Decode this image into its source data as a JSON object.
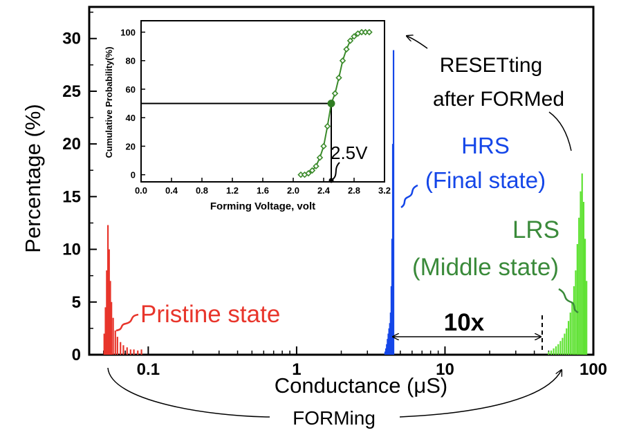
{
  "chart_data": [
    {
      "type": "bar",
      "xlabel": "Conductance (μS)",
      "ylabel": "Percentage (%)",
      "x_scale": "log",
      "xlim": [
        0.04,
        100
      ],
      "ylim": [
        0,
        33
      ],
      "y_ticks": [
        0,
        5,
        10,
        15,
        20,
        25,
        30
      ],
      "x_ticks": [
        {
          "value": 0.1,
          "label": "0.1"
        },
        {
          "value": 1,
          "label": "1"
        },
        {
          "value": 10,
          "label": "10"
        },
        {
          "value": 100,
          "label": "100"
        }
      ],
      "series": [
        {
          "name": "Pristine state",
          "color": "#e8352b",
          "x": [
            0.0505,
            0.0515,
            0.0525,
            0.0535,
            0.0545,
            0.0555,
            0.0565,
            0.058,
            0.06,
            0.062,
            0.065,
            0.068,
            0.072,
            0.076,
            0.08,
            0.085,
            0.09
          ],
          "values": [
            2.0,
            4.5,
            8.0,
            12.3,
            10.0,
            7.0,
            5.0,
            3.5,
            2.3,
            1.7,
            1.2,
            0.9,
            0.7,
            0.5,
            0.5,
            0.4,
            0.5
          ]
        },
        {
          "name": "HRS (Final state)",
          "color": "#1446e8",
          "x": [
            3.95,
            4.0,
            4.05,
            4.1,
            4.15,
            4.2,
            4.25,
            4.3,
            4.35,
            4.4,
            4.45,
            4.5
          ],
          "values": [
            0.3,
            0.6,
            1.0,
            1.5,
            2.0,
            2.5,
            3.0,
            4.0,
            6.5,
            11.0,
            20.0,
            28.9
          ]
        },
        {
          "name": "LRS (Middle state)",
          "color": "#5fe233",
          "x": [
            50,
            52,
            54,
            56,
            58,
            60,
            62,
            64,
            66,
            68,
            70,
            72,
            74,
            76,
            78,
            80,
            82,
            84,
            86,
            88,
            90
          ],
          "values": [
            0.3,
            0.4,
            0.6,
            0.8,
            1.0,
            1.3,
            1.6,
            2.0,
            2.5,
            3.2,
            4.0,
            5.0,
            6.5,
            8.0,
            10.5,
            13.0,
            15.5,
            17.2,
            14.5,
            11.0,
            7.0
          ]
        }
      ],
      "annotations": {
        "pristine": "Pristine state",
        "hrs_line1": "HRS",
        "hrs_line2": "(Final state)",
        "lrs_line1": "LRS",
        "lrs_line2": "(Middle state)",
        "reset_line1": "RESETting",
        "reset_line2": "after FORMed",
        "ratio": "10x",
        "forming": "FORMing"
      }
    },
    {
      "type": "line",
      "inset": true,
      "xlabel": "Forming Voltage, volt",
      "ylabel": "Cumulative Probability(%)",
      "xlim": [
        0,
        3.2
      ],
      "ylim": [
        -5,
        108
      ],
      "x_ticks": [
        "0.0",
        "0.4",
        "0.8",
        "1.2",
        "1.6",
        "2.0",
        "2.4",
        "2.8",
        "3.2"
      ],
      "y_ticks": [
        0,
        20,
        40,
        60,
        80,
        100
      ],
      "series": [
        {
          "color": "#3a8a2a",
          "x": [
            2.1,
            2.15,
            2.2,
            2.25,
            2.3,
            2.35,
            2.4,
            2.45,
            2.5,
            2.55,
            2.6,
            2.65,
            2.7,
            2.75,
            2.8,
            2.85,
            2.9,
            2.95,
            3.0
          ],
          "y": [
            0,
            0,
            1,
            3,
            6,
            12,
            20,
            34,
            50,
            57,
            68,
            80,
            88,
            94,
            97,
            99,
            100,
            100,
            100
          ]
        }
      ],
      "marker": {
        "x": 2.5,
        "y": 50
      },
      "marker_label": "2.5V"
    }
  ]
}
